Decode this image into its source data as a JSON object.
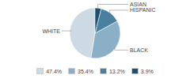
{
  "chart_data": {
    "type": "pie",
    "categories": [
      "WHITE",
      "BLACK",
      "HISPANIC",
      "ASIAN"
    ],
    "values": [
      47.4,
      35.4,
      13.2,
      3.9
    ],
    "value_labels": [
      "47.4%",
      "35.4%",
      "13.2%",
      "3.9%"
    ],
    "colors": [
      "#cdd9e3",
      "#8aafc6",
      "#4a7fa0",
      "#1e4f6e"
    ],
    "legend": "bottom"
  }
}
